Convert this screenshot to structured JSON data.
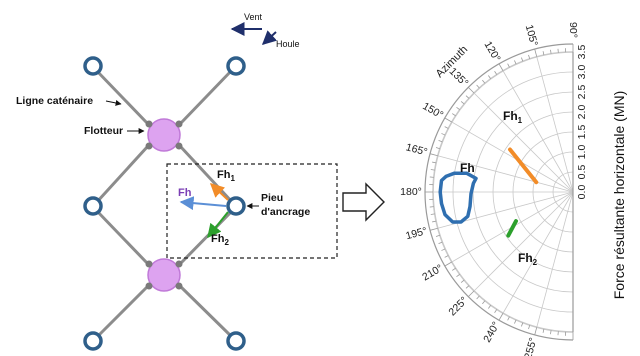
{
  "left_diagram": {
    "wind_label": "Vent",
    "swell_label": "Houle",
    "catenary_label": "Ligne caténaire",
    "float_label": "Flotteur",
    "anchor_label_line1": "Pieu",
    "anchor_label_line2": "d'ancrage",
    "fh_label": "Fh",
    "fh1_label_base": "Fh",
    "fh1_label_sub": "1",
    "fh2_label_base": "Fh",
    "fh2_label_sub": "2",
    "colors": {
      "line": "#8c8c8c",
      "anchor": "#2f5f8a",
      "float_fill": "#dda3f0",
      "fh": "#5b8fd6",
      "fh1": "#f28c28",
      "fh2": "#2ca02c",
      "fh_label": "#7b3fb5"
    }
  },
  "polar_chart": {
    "azimuth_label": "Azimuth",
    "angle_ticks": [
      "90°",
      "105°",
      "120°",
      "135°",
      "150°",
      "165°",
      "180°",
      "195°",
      "210°",
      "225°",
      "240°",
      "255°"
    ],
    "radial_ticks": [
      "0.0",
      "0.5",
      "1.0",
      "1.5",
      "2.0",
      "2.5",
      "3.0",
      "3.5"
    ],
    "radial_axis_label": "Force résultante horizontale (MN)",
    "series_labels": {
      "fh": "Fh",
      "fh1_base": "Fh",
      "fh1_sub": "1",
      "fh2_base": "Fh",
      "fh2_sub": "2"
    },
    "colors": {
      "fh": "#2f6fb0",
      "fh1": "#f28c28",
      "fh2": "#2ca02c",
      "grid": "#c8c8c8"
    }
  },
  "chart_data": {
    "type": "scatter",
    "title": "",
    "angle_axis": "Azimuth",
    "radial_axis_label": "Force résultante horizontale (MN)",
    "radial_range": [
      0,
      3.5
    ],
    "angle_range_deg": [
      90,
      270
    ],
    "series": [
      {
        "name": "Fh",
        "kind": "closed_loop",
        "points": [
          {
            "azimuth": 170,
            "r": 2.7
          },
          {
            "azimuth": 171,
            "r": 3.0
          },
          {
            "azimuth": 173,
            "r": 3.2
          },
          {
            "azimuth": 175,
            "r": 3.3
          },
          {
            "azimuth": 180,
            "r": 3.32
          },
          {
            "azimuth": 185,
            "r": 3.3
          },
          {
            "azimuth": 190,
            "r": 3.25
          },
          {
            "azimuth": 194,
            "r": 3.1
          },
          {
            "azimuth": 195,
            "r": 2.9
          },
          {
            "azimuth": 193,
            "r": 2.7
          },
          {
            "azimuth": 188,
            "r": 2.6
          },
          {
            "azimuth": 181,
            "r": 2.55
          },
          {
            "azimuth": 175,
            "r": 2.5
          },
          {
            "azimuth": 172,
            "r": 2.45
          },
          {
            "azimuth": 170,
            "r": 2.7
          }
        ]
      },
      {
        "name": "Fh1",
        "kind": "segment",
        "points": [
          {
            "azimuth": 146,
            "r": 1.9
          },
          {
            "azimuth": 165,
            "r": 0.95
          }
        ]
      },
      {
        "name": "Fh2",
        "kind": "segment",
        "points": [
          {
            "azimuth": 207,
            "r": 1.6
          },
          {
            "azimuth": 214,
            "r": 1.95
          }
        ]
      }
    ]
  }
}
